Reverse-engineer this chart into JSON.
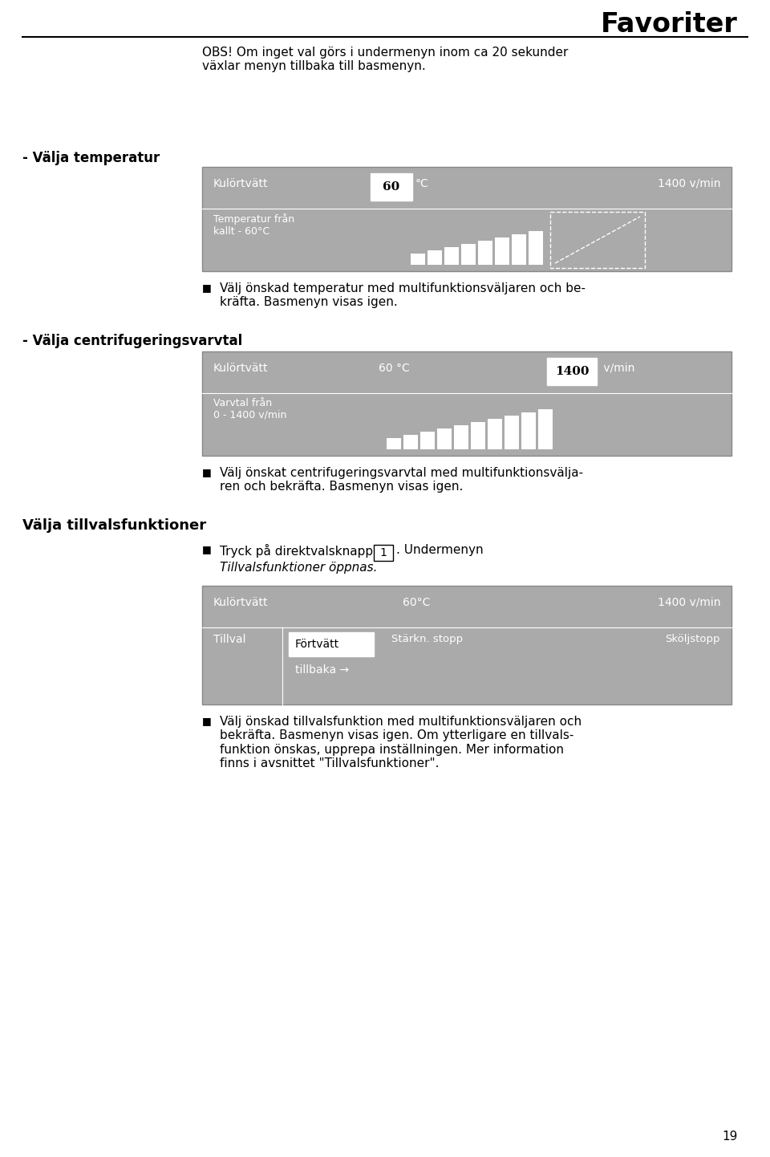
{
  "bg_color": "#ffffff",
  "title": "Favoriter",
  "page_number": "19",
  "obs_text": "OBS! Om inget val görs i undermenyn inom ca 20 sekunder\nväxlar menyn tillbaka till basmenyn.",
  "section1_heading": "- Välja temperatur",
  "section2_heading": "- Välja centrifugeringsvarvtal",
  "section3_heading": "Välja tillvalsfunktioner",
  "display_bg": "#aaaaaa",
  "display_edge": "#888888",
  "white": "#ffffff",
  "black": "#000000",
  "screen1_left": "Kulörtvätt",
  "screen1_mid_hi": "60",
  "screen1_mid_unit": "°C",
  "screen1_right": "1400 v/min",
  "screen1_bot_left": "Temperatur från\nkallt - 60°C",
  "screen2_left": "Kulörtvätt",
  "screen2_mid": "60 °C",
  "screen2_right_hi": "1400",
  "screen2_right_unit": " v/min",
  "screen2_bot_left": "Varvtal från\n0 - 1400 v/min",
  "screen3_left": "Kulörtvätt",
  "screen3_mid": "60°C",
  "screen3_right": "1400 v/min",
  "screen3_label": "Tillval",
  "screen3_hi": "Förtvätt",
  "screen3_col3": "Stärkn. stopp",
  "screen3_col4": "Sköljstopp",
  "screen3_back": "tillbaka →",
  "bullet1": "Välj önskad temperatur med multifunktionsväljaren och be-\nkräfta. Basmenyn visas igen.",
  "bullet2": "Välj önskat centrifugeringsvarvtal med multifunktionsvälja-\nren och bekräfta. Basmenyn visas igen.",
  "bullet3a": "Tryck på direktvalsknappen ",
  "btn_label": "1",
  "bullet3b": ". Undermenyn",
  "bullet3c": "Tillvalsfunktioner öppnas.",
  "bullet4": "Välj önskad tillvalsfunktion med multifunktionsväljaren och\nbek räfta. Basmenyn visas igen. Om ytterligare en tillvals-\nfunktion önskas, upprepa inställningen. Mer information\nfinns i avsnittet \"Tillvalsfunktioner\".",
  "bullet4_line1": "Välj önskad tillvalsfunktion med multifunktionsväljaren och",
  "bullet4_line2": "bek räfta. Basmenyn visas igen. Om ytterligare en tillvals-",
  "bullet4_line3": "funktion önskas, upprepa inställningen. Mer information",
  "bullet4_line4": "finns i avsnittet \"Tillvalsfunktioner\"."
}
